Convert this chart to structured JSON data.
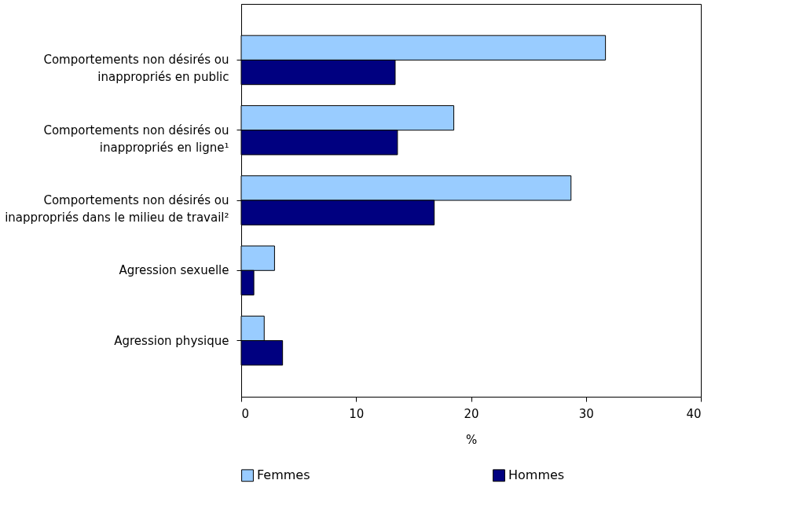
{
  "chart_data": {
    "type": "bar",
    "orientation": "horizontal",
    "xlabel": "%",
    "categories": [
      "Comportements non désirés ou\ninappropriés en public",
      "Comportements non désirés ou\ninappropriés en ligne¹",
      "Comportements non désirés ou\ninappropriés dans le milieu de travail²",
      "Agression sexuelle",
      "Agression physique"
    ],
    "series": [
      {
        "name": "Femmes",
        "color": "#99ccff",
        "values": [
          31.7,
          18.5,
          28.7,
          2.9,
          2.0
        ]
      },
      {
        "name": "Hommes",
        "color": "#000080",
        "values": [
          13.4,
          13.6,
          16.8,
          1.1,
          3.6
        ]
      }
    ],
    "xlim": [
      0,
      40
    ],
    "xticks": [
      0,
      10,
      20,
      30,
      40
    ],
    "grid": false,
    "legend": "bottom"
  }
}
